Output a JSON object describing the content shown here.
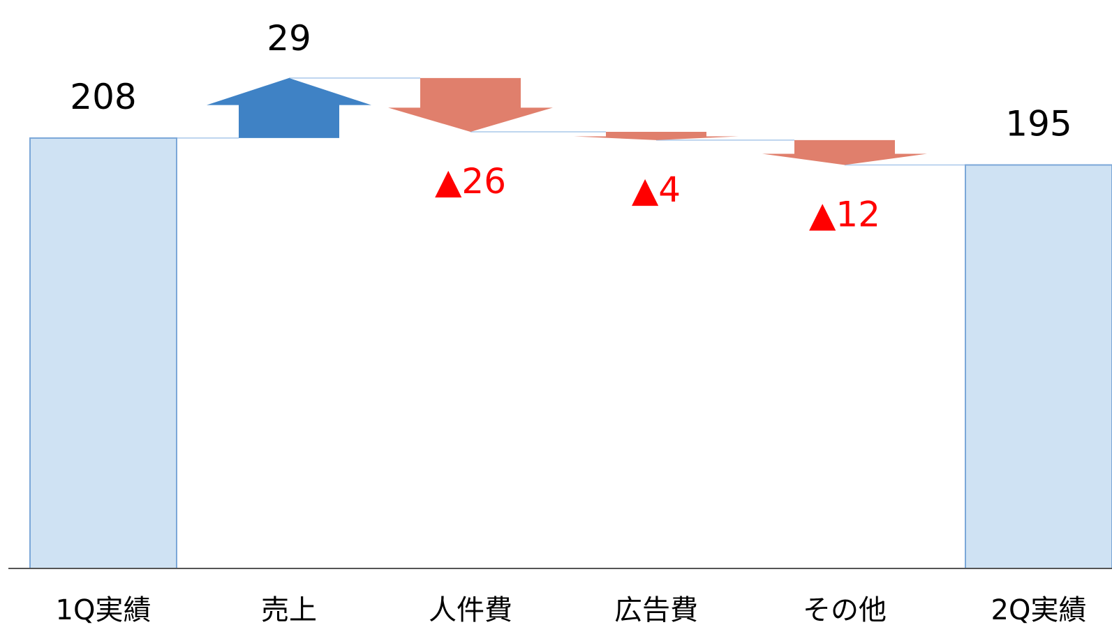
{
  "chart_data": {
    "type": "waterfall",
    "categories": [
      "1Q実績",
      "売上",
      "人件費",
      "広告費",
      "その他",
      "2Q実績"
    ],
    "values": [
      208,
      29,
      -26,
      -4,
      -12,
      195
    ],
    "value_labels": [
      "208",
      "29",
      "▲26",
      "▲4",
      "▲12",
      "195"
    ],
    "kinds": [
      "total",
      "increase",
      "decrease",
      "decrease",
      "decrease",
      "total"
    ],
    "ylim": [
      0,
      240
    ],
    "grid": false,
    "legend": "none",
    "colors": {
      "total_fill": "#cfe2f3",
      "total_stroke": "#7ba7d8",
      "increase": "#3f82c5",
      "decrease": "#e07f6c",
      "connector": "#a9c8ea",
      "negative_label": "#ff0000",
      "label": "#000000",
      "axis": "#555555"
    }
  }
}
